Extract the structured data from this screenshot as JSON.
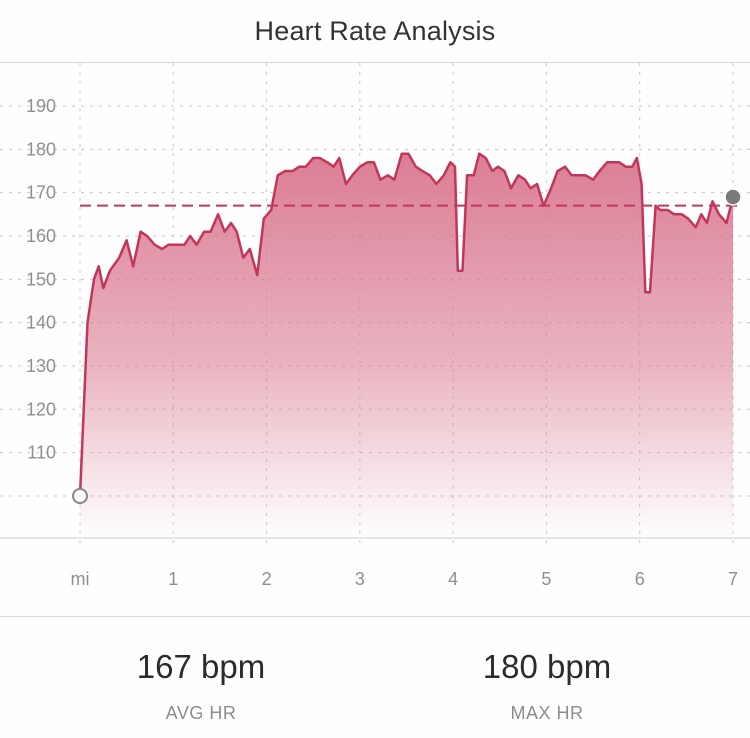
{
  "title": "Heart Rate Analysis",
  "chart_data": {
    "type": "area",
    "xlabel": "",
    "ylabel": "",
    "x_tick_labels": [
      "mi",
      "1",
      "2",
      "3",
      "4",
      "5",
      "6",
      "7"
    ],
    "y_tick_labels": [
      "110",
      "120",
      "130",
      "140",
      "150",
      "160",
      "170",
      "180",
      "190"
    ],
    "xlim": [
      0,
      7
    ],
    "ylim": [
      100,
      200
    ],
    "grid": true,
    "reference_line": {
      "value": 167,
      "style": "dashed"
    },
    "series": [
      {
        "points": [
          [
            0.0,
            100
          ],
          [
            0.08,
            140
          ],
          [
            0.15,
            150
          ],
          [
            0.2,
            153
          ],
          [
            0.25,
            148
          ],
          [
            0.32,
            152
          ],
          [
            0.42,
            155
          ],
          [
            0.5,
            159
          ],
          [
            0.57,
            153
          ],
          [
            0.65,
            161
          ],
          [
            0.72,
            160
          ],
          [
            0.8,
            158
          ],
          [
            0.88,
            157
          ],
          [
            0.95,
            158
          ],
          [
            1.05,
            158
          ],
          [
            1.12,
            158
          ],
          [
            1.18,
            160
          ],
          [
            1.25,
            158
          ],
          [
            1.33,
            161
          ],
          [
            1.4,
            161
          ],
          [
            1.48,
            165
          ],
          [
            1.55,
            161
          ],
          [
            1.62,
            163
          ],
          [
            1.68,
            161
          ],
          [
            1.75,
            155
          ],
          [
            1.82,
            157
          ],
          [
            1.9,
            151
          ],
          [
            1.97,
            164
          ],
          [
            2.05,
            166
          ],
          [
            2.12,
            174
          ],
          [
            2.2,
            175
          ],
          [
            2.28,
            175
          ],
          [
            2.35,
            176
          ],
          [
            2.42,
            176
          ],
          [
            2.5,
            178
          ],
          [
            2.57,
            178
          ],
          [
            2.65,
            177
          ],
          [
            2.72,
            176
          ],
          [
            2.78,
            178
          ],
          [
            2.85,
            172
          ],
          [
            2.92,
            174
          ],
          [
            3.0,
            176
          ],
          [
            3.08,
            177
          ],
          [
            3.15,
            177
          ],
          [
            3.22,
            173
          ],
          [
            3.3,
            174
          ],
          [
            3.37,
            173
          ],
          [
            3.45,
            179
          ],
          [
            3.52,
            179
          ],
          [
            3.6,
            176
          ],
          [
            3.67,
            175
          ],
          [
            3.75,
            174
          ],
          [
            3.82,
            172
          ],
          [
            3.9,
            174
          ],
          [
            3.97,
            177
          ],
          [
            4.02,
            176
          ],
          [
            4.05,
            152
          ],
          [
            4.1,
            152
          ],
          [
            4.15,
            174
          ],
          [
            4.22,
            174
          ],
          [
            4.28,
            179
          ],
          [
            4.35,
            178
          ],
          [
            4.42,
            175
          ],
          [
            4.48,
            176
          ],
          [
            4.55,
            175
          ],
          [
            4.62,
            171
          ],
          [
            4.7,
            174
          ],
          [
            4.77,
            173
          ],
          [
            4.83,
            171
          ],
          [
            4.9,
            172
          ],
          [
            4.97,
            167
          ],
          [
            5.05,
            171
          ],
          [
            5.12,
            175
          ],
          [
            5.2,
            176
          ],
          [
            5.27,
            174
          ],
          [
            5.35,
            174
          ],
          [
            5.42,
            174
          ],
          [
            5.5,
            173
          ],
          [
            5.57,
            175
          ],
          [
            5.65,
            177
          ],
          [
            5.72,
            177
          ],
          [
            5.78,
            177
          ],
          [
            5.85,
            176
          ],
          [
            5.92,
            176
          ],
          [
            5.97,
            178
          ],
          [
            6.02,
            172
          ],
          [
            6.06,
            147
          ],
          [
            6.11,
            147
          ],
          [
            6.17,
            167
          ],
          [
            6.22,
            166
          ],
          [
            6.3,
            166
          ],
          [
            6.37,
            165
          ],
          [
            6.45,
            165
          ],
          [
            6.52,
            164
          ],
          [
            6.6,
            162
          ],
          [
            6.66,
            165
          ],
          [
            6.72,
            163
          ],
          [
            6.78,
            168
          ],
          [
            6.85,
            165
          ],
          [
            6.93,
            163
          ],
          [
            7.0,
            169
          ]
        ]
      }
    ],
    "colors": {
      "line": "#c4355a",
      "fill_top": "#d9778f",
      "reference_line": "#c4355a",
      "grid": "#c8c8c8",
      "start_marker_fill": "#ffffff",
      "start_marker_stroke": "#888888",
      "end_marker_fill": "#7a7a7a"
    }
  },
  "stats": [
    {
      "value": "167 bpm",
      "label": "AVG HR"
    },
    {
      "value": "180 bpm",
      "label": "MAX HR"
    }
  ]
}
